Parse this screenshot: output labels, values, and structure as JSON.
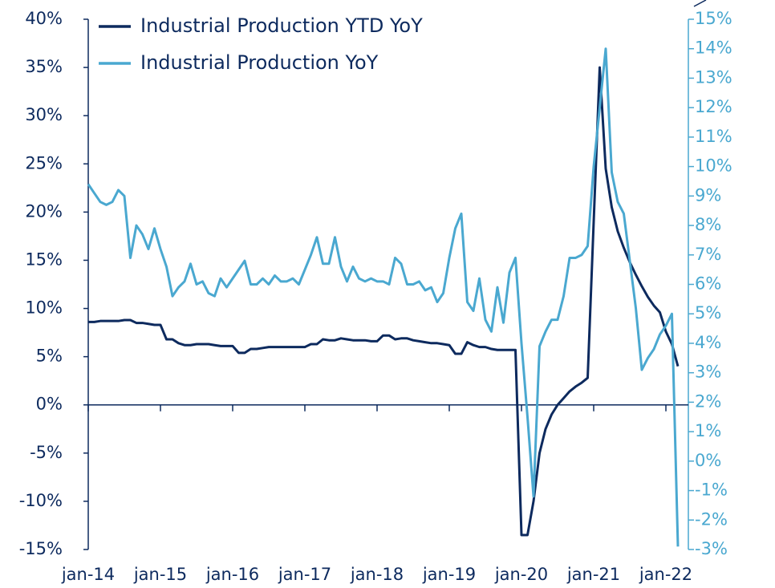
{
  "chart_data": {
    "type": "line",
    "categories": [
      "jan-14",
      null,
      null,
      null,
      null,
      null,
      null,
      null,
      null,
      null,
      null,
      null,
      "jan-15",
      null,
      null,
      null,
      null,
      null,
      null,
      null,
      null,
      null,
      null,
      null,
      "jan-16",
      null,
      null,
      null,
      null,
      null,
      null,
      null,
      null,
      null,
      null,
      null,
      "jan-17",
      null,
      null,
      null,
      null,
      null,
      null,
      null,
      null,
      null,
      null,
      null,
      "jan-18",
      null,
      null,
      null,
      null,
      null,
      null,
      null,
      null,
      null,
      null,
      null,
      "jan-19",
      null,
      null,
      null,
      null,
      null,
      null,
      null,
      null,
      null,
      null,
      null,
      "jan-20",
      null,
      null,
      null,
      null,
      null,
      null,
      null,
      null,
      null,
      null,
      null,
      "jan-21",
      null,
      null,
      null,
      null,
      null,
      null,
      null,
      null,
      null,
      null,
      null,
      "jan-22",
      null,
      null
    ],
    "series": [
      {
        "name": "Industrial Production YTD YoY",
        "color": "#0d2a5e",
        "axis": "y",
        "values": [
          8.6,
          8.6,
          8.7,
          8.7,
          8.7,
          8.7,
          8.8,
          8.8,
          8.5,
          8.5,
          8.4,
          8.3,
          8.3,
          6.8,
          6.8,
          6.4,
          6.2,
          6.2,
          6.3,
          6.3,
          6.3,
          6.2,
          6.1,
          6.1,
          6.1,
          5.4,
          5.4,
          5.8,
          5.8,
          5.9,
          6.0,
          6.0,
          6.0,
          6.0,
          6.0,
          6.0,
          6.0,
          6.3,
          6.3,
          6.8,
          6.7,
          6.7,
          6.9,
          6.8,
          6.7,
          6.7,
          6.7,
          6.6,
          6.6,
          7.2,
          7.2,
          6.8,
          6.9,
          6.9,
          6.7,
          6.6,
          6.5,
          6.4,
          6.4,
          6.3,
          6.2,
          5.3,
          5.3,
          6.5,
          6.2,
          6.0,
          6.0,
          5.8,
          5.7,
          5.7,
          5.7,
          5.7,
          -13.5,
          -13.5,
          -10,
          -5,
          -2.5,
          -1,
          0,
          0.7,
          1.4,
          1.9,
          2.3,
          2.8,
          19,
          35,
          24.5,
          20.5,
          18,
          16.3,
          14.8,
          13.5,
          12.3,
          11.2,
          10.3,
          9.6,
          7.6,
          6.3,
          4.0
        ]
      },
      {
        "name": "Industrial Production YoY",
        "color": "#4aa8d0",
        "axis": "y2",
        "values": [
          9.4,
          9.1,
          8.8,
          8.7,
          8.8,
          9.2,
          9.0,
          6.9,
          8.0,
          7.7,
          7.2,
          7.9,
          7.2,
          6.6,
          5.6,
          5.9,
          6.1,
          6.7,
          6.0,
          6.1,
          5.7,
          5.6,
          6.2,
          5.9,
          6.2,
          6.5,
          6.8,
          6.0,
          6.0,
          6.2,
          6.0,
          6.3,
          6.1,
          6.1,
          6.2,
          6.0,
          6.5,
          7.0,
          7.6,
          6.7,
          6.7,
          7.6,
          6.6,
          6.1,
          6.6,
          6.2,
          6.1,
          6.2,
          6.1,
          6.1,
          6.0,
          6.9,
          6.7,
          6.0,
          6.0,
          6.1,
          5.8,
          5.9,
          5.4,
          5.7,
          6.9,
          7.9,
          8.4,
          5.4,
          5.1,
          6.2,
          4.8,
          4.4,
          5.9,
          4.7,
          6.4,
          6.9,
          4.0,
          1.5,
          -1.2,
          3.9,
          4.4,
          4.8,
          4.8,
          5.6,
          6.9,
          6.9,
          7.0,
          7.3,
          10.0,
          12.0,
          14.0,
          9.8,
          8.8,
          8.4,
          6.8,
          5.2,
          3.1,
          3.5,
          3.8,
          4.3,
          4.6,
          5.0,
          -2.9
        ]
      }
    ],
    "ylim": [
      -15,
      40
    ],
    "yticks": [
      {
        "value": -15,
        "label": "-15%"
      },
      {
        "value": -10,
        "label": "-10%"
      },
      {
        "value": -5,
        "label": "-5%"
      },
      {
        "value": 0,
        "label": "0%"
      },
      {
        "value": 5,
        "label": "5%"
      },
      {
        "value": 10,
        "label": "10%"
      },
      {
        "value": 15,
        "label": "15%"
      },
      {
        "value": 20,
        "label": "20%"
      },
      {
        "value": 25,
        "label": "25%"
      },
      {
        "value": 30,
        "label": "30%"
      },
      {
        "value": 35,
        "label": "35%"
      },
      {
        "value": 40,
        "label": "40%"
      }
    ],
    "y2lim": [
      -3,
      15
    ],
    "y2ticks": [
      {
        "value": -3,
        "label": "-3%"
      },
      {
        "value": -2,
        "label": "-2%"
      },
      {
        "value": -1,
        "label": "-1%"
      },
      {
        "value": 0,
        "label": "0%"
      },
      {
        "value": 1,
        "label": "1%"
      },
      {
        "value": 2,
        "label": "2%"
      },
      {
        "value": 3,
        "label": "3%"
      },
      {
        "value": 4,
        "label": "4%"
      },
      {
        "value": 5,
        "label": "5%"
      },
      {
        "value": 6,
        "label": "6%"
      },
      {
        "value": 7,
        "label": "7%"
      },
      {
        "value": 8,
        "label": "8%"
      },
      {
        "value": 9,
        "label": "9%"
      },
      {
        "value": 10,
        "label": "10%"
      },
      {
        "value": 11,
        "label": "11%"
      },
      {
        "value": 12,
        "label": "12%"
      },
      {
        "value": 13,
        "label": "13%"
      },
      {
        "value": 14,
        "label": "14%"
      },
      {
        "value": 15,
        "label": "15%"
      }
    ],
    "legend": "upper left"
  }
}
